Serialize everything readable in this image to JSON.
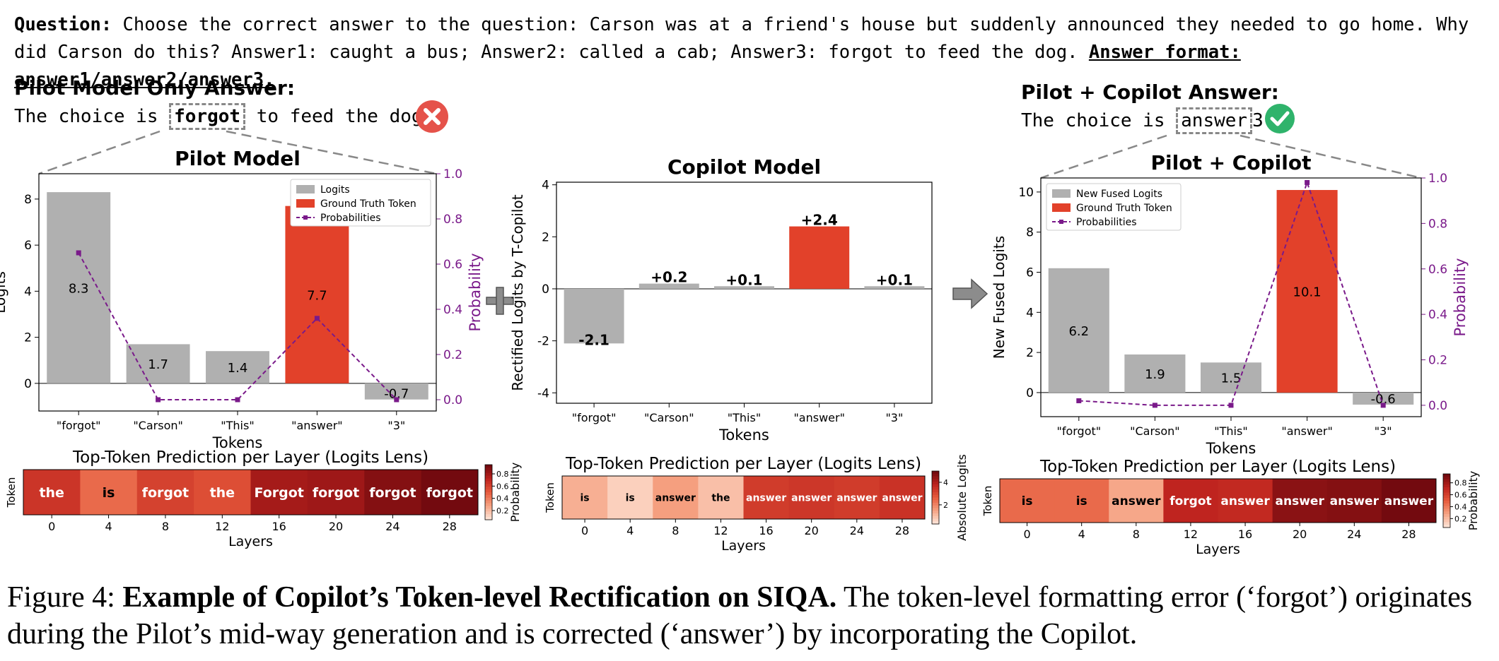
{
  "question": {
    "label": "Question:",
    "text": " Choose the correct answer to the question: Carson was at a friend's house but suddenly announced they needed to go home. Why did Carson do this? Answer1: caught a bus; Answer2: called a cab; Answer3: forgot to feed the dog. ",
    "format": "Answer format: answer1/answer2/answer3."
  },
  "pilot_answer": {
    "title": "Pilot Model Only Answer:",
    "prefix": "The choice is ",
    "token": "forgot",
    "suffix": " to feed the dog."
  },
  "copilot_answer": {
    "title": "Pilot + Copilot Answer:",
    "prefix": "The choice is ",
    "token": "answer",
    "suffix": "3"
  },
  "chart_data": [
    {
      "type": "bar",
      "title": "Pilot Model",
      "categories": [
        "\"forgot\"",
        "\"Carson\"",
        "\"This\"",
        "\"answer\"",
        "\"3\""
      ],
      "values": [
        8.3,
        1.7,
        1.4,
        7.7,
        -0.7
      ],
      "value_labels": [
        "8.3",
        "1.7",
        "1.4",
        "7.7",
        "-0.7"
      ],
      "highlight_index": 3,
      "xlabel": "Tokens",
      "ylabel": "Logits",
      "ylim": [
        -1.2,
        9.1
      ],
      "yticks": [
        0,
        2,
        4,
        6,
        8
      ],
      "y2label": "Probability",
      "y2lim": [
        -0.05,
        1.0
      ],
      "y2ticks": [
        0.0,
        0.2,
        0.4,
        0.6,
        0.8,
        1.0
      ],
      "probabilities": [
        0.65,
        0.0,
        0.0,
        0.36,
        0.0
      ],
      "legend": [
        "Logits",
        "Ground Truth Token",
        "Probabilities"
      ],
      "legend_position": "upper-right"
    },
    {
      "type": "bar",
      "title": "Copilot Model",
      "categories": [
        "\"forgot\"",
        "\"Carson\"",
        "\"This\"",
        "\"answer\"",
        "\"3\""
      ],
      "values": [
        -2.1,
        0.2,
        0.1,
        2.4,
        0.1
      ],
      "value_labels": [
        "-2.1",
        "+0.2",
        "+0.1",
        "+2.4",
        "+0.1"
      ],
      "highlight_index": 3,
      "xlabel": "Tokens",
      "ylabel": "Rectified Logits by T-Copilot",
      "ylim": [
        -4.4,
        4.1
      ],
      "yticks": [
        -4,
        -2,
        0,
        2,
        4
      ]
    },
    {
      "type": "bar",
      "title": "Pilot + Copilot",
      "categories": [
        "\"forgot\"",
        "\"Carson\"",
        "\"This\"",
        "\"answer\"",
        "\"3\""
      ],
      "values": [
        6.2,
        1.9,
        1.5,
        10.1,
        -0.6
      ],
      "value_labels": [
        "6.2",
        "1.9",
        "1.5",
        "10.1",
        "-0.6"
      ],
      "highlight_index": 3,
      "xlabel": "Tokens",
      "ylabel": "New Fused Logits",
      "ylim": [
        -1.2,
        10.7
      ],
      "yticks": [
        0,
        2,
        4,
        6,
        8,
        10
      ],
      "y2label": "Probability",
      "y2lim": [
        -0.05,
        1.0
      ],
      "y2ticks": [
        0.0,
        0.2,
        0.4,
        0.6,
        0.8,
        1.0
      ],
      "probabilities": [
        0.02,
        0.0,
        0.0,
        0.98,
        0.0
      ],
      "legend": [
        "New Fused Logits",
        "Ground Truth Token",
        "Probabilities"
      ],
      "legend_position": "upper-left"
    },
    {
      "type": "heatmap",
      "title": "Top-Token Prediction per Layer (Logits Lens)",
      "xlabel": "Layers",
      "ylabel": "Token",
      "x": [
        "0",
        "4",
        "8",
        "12",
        "16",
        "20",
        "24",
        "28"
      ],
      "tokens": [
        "the",
        "is",
        "forgot",
        "the",
        "Forgot",
        "forgot",
        "forgot",
        "forgot"
      ],
      "values": [
        0.65,
        0.45,
        0.6,
        0.55,
        0.8,
        0.82,
        0.9,
        0.95
      ],
      "colorbar_label": "Probability",
      "colorbar_ticks": [
        "0.8",
        "0.6",
        "0.4",
        "0.2"
      ],
      "colorbar_range": [
        0.05,
        0.95
      ]
    },
    {
      "type": "heatmap",
      "title": "Top-Token Prediction per Layer (Logits Lens)",
      "xlabel": "Layers",
      "ylabel": "Token",
      "x": [
        "0",
        "4",
        "8",
        "12",
        "16",
        "20",
        "24",
        "28"
      ],
      "tokens": [
        "is",
        "is",
        "answer",
        "the",
        "answer",
        "answer",
        "answer",
        "answer"
      ],
      "values": [
        1.2,
        0.6,
        1.5,
        0.9,
        3.3,
        3.4,
        3.3,
        3.5
      ],
      "colorbar_label": "Absolute Logits",
      "colorbar_ticks": [
        "4",
        "2"
      ],
      "colorbar_range": [
        0.3,
        5.0
      ]
    },
    {
      "type": "heatmap",
      "title": "Top-Token Prediction per Layer (Logits Lens)",
      "xlabel": "Layers",
      "ylabel": "Token",
      "x": [
        "0",
        "4",
        "8",
        "12",
        "16",
        "20",
        "24",
        "28"
      ],
      "tokens": [
        "is",
        "is",
        "answer",
        "forgot",
        "answer",
        "answer",
        "answer",
        "answer"
      ],
      "values": [
        0.45,
        0.45,
        0.25,
        0.72,
        0.7,
        0.88,
        0.9,
        0.95
      ],
      "colorbar_label": "Probability",
      "colorbar_ticks": [
        "0.8",
        "0.6",
        "0.4",
        "0.2"
      ],
      "colorbar_range": [
        0.05,
        0.95
      ]
    }
  ],
  "caption": {
    "label": "Figure 4: ",
    "bold": "Example of Copilot’s Token-level Rectification on SIQA.",
    "text": " The token-level formatting error (‘forgot’) originates during the Pilot’s mid-way generation and is corrected (‘answer’) by incorporating the Copilot."
  },
  "colors": {
    "gray_bar": "#b0b0b0",
    "red_bar": "#e2412a",
    "probability": "#7a1a8a",
    "error_icon": "#e5524a",
    "check_icon": "#2fb36b",
    "arrow": "#8c8c8c"
  }
}
